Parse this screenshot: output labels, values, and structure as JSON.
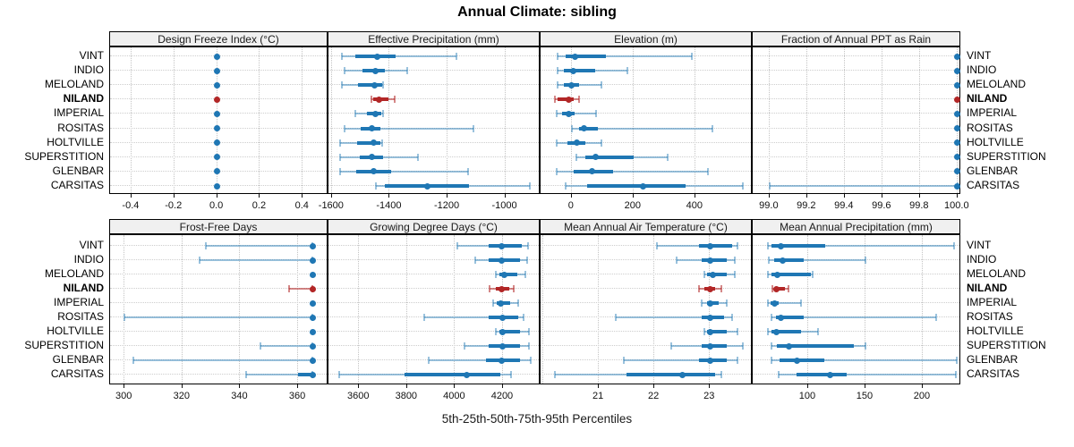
{
  "chart_data": {
    "type": "dotplot-trellis",
    "title": "Annual Climate: sibling",
    "caption": "5th-25th-50th-75th-95th Percentiles",
    "percentile_labels": [
      "5th",
      "25th",
      "50th",
      "75th",
      "95th"
    ],
    "layout_hint": {
      "rows": 2,
      "cols": 4,
      "grid": "dotted",
      "axis_labels_below_each_row": true,
      "row_labels": "both-sides"
    },
    "categories": [
      "VINT",
      "INDIO",
      "MELOLAND",
      "NILAND",
      "IMPERIAL",
      "ROSITAS",
      "HOLTVILLE",
      "SUPERSTITION",
      "GLENBAR",
      "CARSITAS"
    ],
    "highlight_category": "NILAND",
    "colors": {
      "series": "#1F77B4",
      "highlight": "#B22626",
      "strip_bg": "#F0F0F0",
      "panel_border": "#000000",
      "grid": "#C4C4C4",
      "whisker_alpha": 0.45
    },
    "panels": [
      {
        "title": "Design Freeze Index (°C)",
        "xlim": [
          -0.5,
          0.52
        ],
        "ticks": [
          -0.4,
          -0.2,
          0.0,
          0.2,
          0.4
        ],
        "tick_labels": [
          "-0.4",
          "-0.2",
          "0.0",
          "0.2",
          "0.4"
        ],
        "values": {
          "VINT": [
            0,
            0,
            0,
            0,
            0
          ],
          "INDIO": [
            0,
            0,
            0,
            0,
            0
          ],
          "MELOLAND": [
            0,
            0,
            0,
            0,
            0
          ],
          "NILAND": [
            0,
            0,
            0,
            0,
            0
          ],
          "IMPERIAL": [
            0,
            0,
            0,
            0,
            0
          ],
          "ROSITAS": [
            0,
            0,
            0,
            0,
            0
          ],
          "HOLTVILLE": [
            0,
            0,
            0,
            0,
            0
          ],
          "SUPERSTITION": [
            0,
            0,
            0,
            0,
            0
          ],
          "GLENBAR": [
            0,
            0,
            0,
            0,
            0
          ],
          "CARSITAS": [
            0,
            0,
            0,
            0,
            0
          ]
        }
      },
      {
        "title": "Effective Precipitation (mm)",
        "xlim": [
          -1612,
          -878
        ],
        "ticks": [
          -1600,
          -1400,
          -1200,
          -1000
        ],
        "tick_labels": [
          "-1600",
          "-1400",
          "-1200",
          "-1000"
        ],
        "values": {
          "VINT": [
            -1565,
            -1520,
            -1442,
            -1380,
            -1170
          ],
          "INDIO": [
            -1556,
            -1495,
            -1448,
            -1417,
            -1338
          ],
          "MELOLAND": [
            -1565,
            -1511,
            -1451,
            -1426,
            -1423
          ],
          "NILAND": [
            -1464,
            -1458,
            -1436,
            -1405,
            -1382
          ],
          "IMPERIAL": [
            -1520,
            -1480,
            -1448,
            -1430,
            -1423
          ],
          "ROSITAS": [
            -1555,
            -1502,
            -1462,
            -1432,
            -1110
          ],
          "HOLTVILLE": [
            -1572,
            -1512,
            -1455,
            -1432,
            -1426
          ],
          "SUPERSTITION": [
            -1572,
            -1505,
            -1462,
            -1423,
            -1302
          ],
          "GLENBAR": [
            -1572,
            -1517,
            -1455,
            -1395,
            -1128
          ],
          "CARSITAS": [
            -1448,
            -1417,
            -1270,
            -1127,
            -916
          ]
        }
      },
      {
        "title": "Elevation (m)",
        "xlim": [
          -101,
          586
        ],
        "ticks": [
          0,
          200,
          400
        ],
        "tick_labels": [
          "0",
          "200",
          "400"
        ],
        "values": {
          "VINT": [
            -45,
            -20,
            10,
            110,
            390
          ],
          "INDIO": [
            -45,
            -25,
            5,
            75,
            180
          ],
          "MELOLAND": [
            -45,
            -25,
            0,
            25,
            95
          ],
          "NILAND": [
            -55,
            -45,
            -10,
            5,
            25
          ],
          "IMPERIAL": [
            -50,
            -30,
            -10,
            10,
            80
          ],
          "ROSITAS": [
            0,
            25,
            40,
            85,
            455
          ],
          "HOLTVILLE": [
            -50,
            -15,
            15,
            45,
            95
          ],
          "SUPERSTITION": [
            15,
            45,
            78,
            200,
            310
          ],
          "GLENBAR": [
            -50,
            5,
            65,
            135,
            440
          ],
          "CARSITAS": [
            -20,
            50,
            230,
            370,
            555
          ]
        }
      },
      {
        "title": "Fraction of Annual PPT as Rain",
        "xlim": [
          98.91,
          100.02
        ],
        "ticks": [
          99.0,
          99.2,
          99.4,
          99.6,
          99.8,
          100.0
        ],
        "tick_labels": [
          "99.0",
          "99.2",
          "99.4",
          "99.6",
          "99.8",
          "100.0"
        ],
        "values": {
          "VINT": [
            100,
            100,
            100,
            100,
            100
          ],
          "INDIO": [
            100,
            100,
            100,
            100,
            100
          ],
          "MELOLAND": [
            100,
            100,
            100,
            100,
            100
          ],
          "NILAND": [
            100,
            100,
            100,
            100,
            100
          ],
          "IMPERIAL": [
            100,
            100,
            100,
            100,
            100
          ],
          "ROSITAS": [
            100,
            100,
            100,
            100,
            100
          ],
          "HOLTVILLE": [
            100,
            100,
            100,
            100,
            100
          ],
          "SUPERSTITION": [
            100,
            100,
            100,
            100,
            100
          ],
          "GLENBAR": [
            100,
            100,
            100,
            100,
            100
          ],
          "CARSITAS": [
            99.0,
            100,
            100,
            100,
            100
          ]
        }
      },
      {
        "title": "Frost-Free Days",
        "xlim": [
          295,
          370.5
        ],
        "ticks": [
          300,
          320,
          340,
          360
        ],
        "tick_labels": [
          "300",
          "320",
          "340",
          "360"
        ],
        "values": {
          "VINT": [
            328,
            365,
            365,
            365,
            365
          ],
          "INDIO": [
            326,
            365,
            365,
            365,
            365
          ],
          "MELOLAND": [
            365,
            365,
            365,
            365,
            365
          ],
          "NILAND": [
            357,
            365,
            365,
            365,
            365
          ],
          "IMPERIAL": [
            365,
            365,
            365,
            365,
            365
          ],
          "ROSITAS": [
            300,
            365,
            365,
            365,
            365
          ],
          "HOLTVILLE": [
            365,
            365,
            365,
            365,
            365
          ],
          "SUPERSTITION": [
            347,
            365,
            365,
            365,
            365
          ],
          "GLENBAR": [
            303,
            365,
            365,
            365,
            365
          ],
          "CARSITAS": [
            342,
            360,
            365,
            365,
            365
          ]
        }
      },
      {
        "title": "Growing Degree Days (°C)",
        "xlim": [
          3472,
          4357
        ],
        "ticks": [
          3600,
          3800,
          4000,
          4200
        ],
        "tick_labels": [
          "3600",
          "3800",
          "4000",
          "4200"
        ],
        "values": {
          "VINT": [
            4010,
            4140,
            4195,
            4280,
            4305
          ],
          "INDIO": [
            4085,
            4140,
            4195,
            4270,
            4300
          ],
          "MELOLAND": [
            4170,
            4185,
            4205,
            4260,
            4295
          ],
          "NILAND": [
            4145,
            4170,
            4195,
            4225,
            4245
          ],
          "IMPERIAL": [
            4160,
            4175,
            4190,
            4230,
            4265
          ],
          "ROSITAS": [
            3870,
            4140,
            4200,
            4265,
            4285
          ],
          "HOLTVILLE": [
            4170,
            4185,
            4200,
            4270,
            4310
          ],
          "SUPERSTITION": [
            4040,
            4140,
            4200,
            4270,
            4310
          ],
          "GLENBAR": [
            3890,
            4130,
            4195,
            4270,
            4315
          ],
          "CARSITAS": [
            3515,
            3790,
            4050,
            4190,
            4235
          ]
        }
      },
      {
        "title": "Mean Annual Air Temperature (°C)",
        "xlim": [
          19.95,
          23.77
        ],
        "ticks": [
          21,
          22,
          23
        ],
        "tick_labels": [
          "21",
          "22",
          "23"
        ],
        "grid": [
          20,
          21,
          22,
          23
        ],
        "values": {
          "VINT": [
            22.05,
            22.8,
            23.0,
            23.4,
            23.5
          ],
          "INDIO": [
            22.4,
            22.85,
            23.0,
            23.3,
            23.45
          ],
          "MELOLAND": [
            22.9,
            22.95,
            23.05,
            23.3,
            23.45
          ],
          "NILAND": [
            22.8,
            22.9,
            23.0,
            23.1,
            23.2
          ],
          "IMPERIAL": [
            22.85,
            22.95,
            23.0,
            23.15,
            23.3
          ],
          "ROSITAS": [
            21.3,
            22.85,
            23.0,
            23.25,
            23.4
          ],
          "HOLTVILLE": [
            22.9,
            22.95,
            23.0,
            23.3,
            23.5
          ],
          "SUPERSTITION": [
            22.3,
            22.85,
            23.0,
            23.3,
            23.6
          ],
          "GLENBAR": [
            21.45,
            22.8,
            23.0,
            23.3,
            23.5
          ],
          "CARSITAS": [
            20.2,
            21.5,
            22.5,
            23.1,
            23.2
          ]
        }
      },
      {
        "title": "Mean Annual Precipitation (mm)",
        "xlim": [
          51.6,
          233.6
        ],
        "ticks": [
          100,
          150,
          200
        ],
        "tick_labels": [
          "100",
          "150",
          "200"
        ],
        "values": {
          "VINT": [
            65,
            68,
            76,
            115,
            227
          ],
          "INDIO": [
            66,
            70,
            78,
            96,
            150
          ],
          "MELOLAND": [
            65,
            68,
            73,
            102,
            104
          ],
          "NILAND": [
            69,
            70,
            72,
            80,
            83
          ],
          "IMPERIAL": [
            65,
            67,
            71,
            74,
            94
          ],
          "ROSITAS": [
            68,
            72,
            76,
            96,
            212
          ],
          "HOLTVILLE": [
            65,
            68,
            72,
            94,
            109
          ],
          "SUPERSTITION": [
            68,
            73,
            83,
            140,
            150
          ],
          "GLENBAR": [
            68,
            75,
            90,
            114,
            230
          ],
          "CARSITAS": [
            74,
            90,
            119,
            134,
            229
          ]
        }
      }
    ]
  }
}
